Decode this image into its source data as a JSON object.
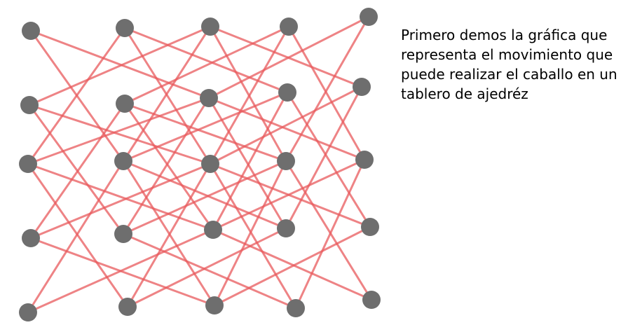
{
  "caption": "Primero demos la gráfica que representa el movimiento que puede realizar el caballo en un tablero de ajedréz",
  "colors": {
    "edge": "#e8595c",
    "node": "#6e6e6e",
    "background": "#ffffff"
  },
  "graph": {
    "grid_rows": 5,
    "grid_cols": 5,
    "edge_rule": "knight-move",
    "nodes": [
      {
        "row": 0,
        "col": 0
      },
      {
        "row": 0,
        "col": 1
      },
      {
        "row": 0,
        "col": 2
      },
      {
        "row": 0,
        "col": 3
      },
      {
        "row": 0,
        "col": 4
      },
      {
        "row": 1,
        "col": 0
      },
      {
        "row": 1,
        "col": 1
      },
      {
        "row": 1,
        "col": 2
      },
      {
        "row": 1,
        "col": 3
      },
      {
        "row": 1,
        "col": 4
      },
      {
        "row": 2,
        "col": 0
      },
      {
        "row": 2,
        "col": 1
      },
      {
        "row": 2,
        "col": 2
      },
      {
        "row": 2,
        "col": 3
      },
      {
        "row": 2,
        "col": 4
      },
      {
        "row": 3,
        "col": 0
      },
      {
        "row": 3,
        "col": 1
      },
      {
        "row": 3,
        "col": 2
      },
      {
        "row": 3,
        "col": 3
      },
      {
        "row": 3,
        "col": 4
      },
      {
        "row": 4,
        "col": 0
      },
      {
        "row": 4,
        "col": 1
      },
      {
        "row": 4,
        "col": 2
      },
      {
        "row": 4,
        "col": 3
      },
      {
        "row": 4,
        "col": 4
      }
    ]
  }
}
